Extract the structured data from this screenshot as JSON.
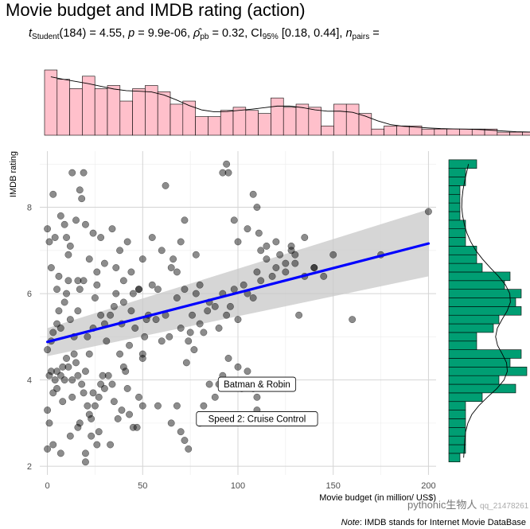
{
  "title": "Movie budget and IMDB rating (action)",
  "subtitle": {
    "t_symbol": "t",
    "t_sub": "Student",
    "t_value": "(184) = 4.55,",
    "p_symbol": "p",
    "p_value": "= 9.9e-06,",
    "rho_symbol": "ρ̂",
    "rho_sub": "pb",
    "rho_value": "= 0.32, CI",
    "ci_sub": "95%",
    "ci_value": "[0.18, 0.44],",
    "n_symbol": "n",
    "n_sub": "pairs",
    "n_value": "="
  },
  "note": {
    "label": "Note",
    "text": ": IMDB stands for Internet Movie DataBase"
  },
  "watermark": {
    "text": "pythonic生物人",
    "small": "qq_21478261"
  },
  "chart_data": {
    "type": "scatter",
    "title": "Movie budget and IMDB rating (action)",
    "xlabel": "Movie budget (in million/ US$)",
    "ylabel": "IMDB rating",
    "xlim": [
      -4,
      204
    ],
    "ylim": [
      1.8,
      9.3
    ],
    "xticks": [
      0,
      50,
      100,
      150,
      200
    ],
    "yticks": [
      2,
      4,
      6,
      8
    ],
    "grid": true,
    "point_color": "#000000",
    "line_color": "#0000ff",
    "band_color": "#c8c8c8",
    "regression": {
      "intercept": 4.88,
      "slope": 0.0114,
      "ci_left": [
        4.55,
        5.2
      ],
      "ci_right": [
        6.4,
        7.95
      ]
    },
    "points": [
      [
        0,
        2.4
      ],
      [
        1,
        3.0
      ],
      [
        0,
        3.3
      ],
      [
        3,
        2.5
      ],
      [
        7,
        2.3
      ],
      [
        3,
        3.7
      ],
      [
        5,
        3.8
      ],
      [
        8,
        3.5
      ],
      [
        1,
        4.1
      ],
      [
        2,
        4.2
      ],
      [
        4,
        4.0
      ],
      [
        5,
        4.2
      ],
      [
        7,
        4.1
      ],
      [
        8,
        4.3
      ],
      [
        9,
        4.0
      ],
      [
        10,
        4.5
      ],
      [
        11,
        4.3
      ],
      [
        13,
        4.0
      ],
      [
        14,
        4.6
      ],
      [
        15,
        4.4
      ],
      [
        16,
        4.1
      ],
      [
        18,
        3.9
      ],
      [
        19,
        3.7
      ],
      [
        20,
        4.2
      ],
      [
        22,
        3.2
      ],
      [
        23,
        3.1
      ],
      [
        24,
        3.7
      ],
      [
        25,
        3.4
      ],
      [
        27,
        3.6
      ],
      [
        28,
        3.9
      ],
      [
        12,
        2.7
      ],
      [
        13,
        3.6
      ],
      [
        16,
        2.9
      ],
      [
        17,
        3.0
      ],
      [
        20,
        2.3
      ],
      [
        21,
        3.4
      ],
      [
        23,
        2.7
      ],
      [
        26,
        2.5
      ],
      [
        27,
        2.8
      ],
      [
        20,
        2.1
      ],
      [
        29,
        4.1
      ],
      [
        30,
        3.8
      ],
      [
        32,
        4.1
      ],
      [
        34,
        3.9
      ],
      [
        35,
        3.5
      ],
      [
        33,
        2.5
      ],
      [
        37,
        3.1
      ],
      [
        39,
        3.3
      ],
      [
        40,
        4.3
      ],
      [
        42,
        3.8
      ],
      [
        43,
        3.2
      ],
      [
        45,
        2.9
      ],
      [
        47,
        2.9
      ],
      [
        48,
        3.6
      ],
      [
        50,
        4.5
      ],
      [
        0,
        4.7
      ],
      [
        2,
        4.9
      ],
      [
        3,
        5.1
      ],
      [
        5,
        5.3
      ],
      [
        6,
        5.6
      ],
      [
        7,
        5.2
      ],
      [
        9,
        5.8
      ],
      [
        10,
        6.0
      ],
      [
        11,
        6.3
      ],
      [
        12,
        5.4
      ],
      [
        14,
        5.0
      ],
      [
        16,
        5.6
      ],
      [
        17,
        6.1
      ],
      [
        19,
        6.3
      ],
      [
        21,
        5.0
      ],
      [
        22,
        4.6
      ],
      [
        24,
        5.2
      ],
      [
        25,
        5.9
      ],
      [
        26,
        6.2
      ],
      [
        28,
        5.5
      ],
      [
        30,
        5.3
      ],
      [
        31,
        4.9
      ],
      [
        33,
        5.5
      ],
      [
        35,
        5.7
      ],
      [
        36,
        6.0
      ],
      [
        38,
        4.6
      ],
      [
        39,
        5.3
      ],
      [
        40,
        5.8
      ],
      [
        41,
        4.2
      ],
      [
        43,
        4.8
      ],
      [
        44,
        5.6
      ],
      [
        45,
        6.0
      ],
      [
        46,
        5.2
      ],
      [
        48,
        6.1
      ],
      [
        50,
        4.6
      ],
      [
        51,
        5.0
      ],
      [
        52,
        5.4
      ],
      [
        53,
        5.5
      ],
      [
        55,
        6.2
      ],
      [
        57,
        5.4
      ],
      [
        58,
        6.1
      ],
      [
        60,
        4.9
      ],
      [
        62,
        5.5
      ],
      [
        64,
        5.0
      ],
      [
        65,
        6.6
      ],
      [
        66,
        6.8
      ],
      [
        68,
        5.9
      ],
      [
        70,
        5.2
      ],
      [
        72,
        6.1
      ],
      [
        73,
        4.4
      ],
      [
        74,
        4.9
      ],
      [
        75,
        5.1
      ],
      [
        76,
        5.5
      ],
      [
        77,
        4.7
      ],
      [
        78,
        6.0
      ],
      [
        80,
        5.3
      ],
      [
        82,
        5.1
      ],
      [
        84,
        5.6
      ],
      [
        85,
        5.8
      ],
      [
        88,
        5.7
      ],
      [
        90,
        5.2
      ],
      [
        92,
        6.0
      ],
      [
        94,
        5.5
      ],
      [
        96,
        5.7
      ],
      [
        98,
        6.1
      ],
      [
        100,
        5.4
      ],
      [
        103,
        6.2
      ],
      [
        105,
        6.0
      ],
      [
        108,
        5.9
      ],
      [
        110,
        6.5
      ],
      [
        112,
        6.3
      ],
      [
        115,
        6.8
      ],
      [
        118,
        6.4
      ],
      [
        120,
        6.6
      ],
      [
        122,
        6.9
      ],
      [
        125,
        6.5
      ],
      [
        128,
        7.1
      ],
      [
        130,
        6.9
      ],
      [
        132,
        5.5
      ],
      [
        135,
        6.4
      ],
      [
        140,
        6.6
      ],
      [
        145,
        6.4
      ],
      [
        150,
        6.9
      ],
      [
        160,
        5.4
      ],
      [
        175,
        6.9
      ],
      [
        200,
        7.9
      ],
      [
        0,
        7.5
      ],
      [
        1,
        7.2
      ],
      [
        2,
        6.6
      ],
      [
        3,
        8.3
      ],
      [
        4,
        7.3
      ],
      [
        5,
        6.1
      ],
      [
        6,
        6.4
      ],
      [
        7,
        7.8
      ],
      [
        9,
        7.6
      ],
      [
        10,
        7.3
      ],
      [
        11,
        6.9
      ],
      [
        12,
        7.1
      ],
      [
        13,
        8.8
      ],
      [
        15,
        7.7
      ],
      [
        16,
        6.3
      ],
      [
        17,
        8.4
      ],
      [
        18,
        8.2
      ],
      [
        19,
        8.8
      ],
      [
        20,
        7.6
      ],
      [
        22,
        6.8
      ],
      [
        24,
        7.4
      ],
      [
        26,
        6.5
      ],
      [
        28,
        7.3
      ],
      [
        30,
        6.7
      ],
      [
        34,
        7.5
      ],
      [
        36,
        6.6
      ],
      [
        38,
        7.0
      ],
      [
        40,
        6.3
      ],
      [
        42,
        7.2
      ],
      [
        44,
        6.5
      ],
      [
        48,
        6.1
      ],
      [
        50,
        6.8
      ],
      [
        55,
        7.3
      ],
      [
        60,
        7.0
      ],
      [
        62,
        8.5
      ],
      [
        68,
        6.5
      ],
      [
        70,
        7.2
      ],
      [
        72,
        7.7
      ],
      [
        78,
        6.9
      ],
      [
        80,
        6.2
      ],
      [
        92,
        8.8
      ],
      [
        94,
        9.0
      ],
      [
        95,
        8.8
      ],
      [
        98,
        7.7
      ],
      [
        100,
        7.2
      ],
      [
        105,
        7.5
      ],
      [
        108,
        8.3
      ],
      [
        110,
        8.0
      ],
      [
        111,
        7.4
      ],
      [
        112,
        7.0
      ],
      [
        115,
        7.1
      ],
      [
        120,
        7.2
      ],
      [
        125,
        6.7
      ],
      [
        128,
        7.0
      ],
      [
        130,
        6.7
      ],
      [
        135,
        7.3
      ],
      [
        140,
        6.6
      ],
      [
        50,
        3.4
      ],
      [
        58,
        3.4
      ],
      [
        65,
        3.0
      ],
      [
        68,
        3.4
      ],
      [
        70,
        2.8
      ],
      [
        72,
        2.6
      ],
      [
        74,
        2.4
      ],
      [
        80,
        3.0
      ],
      [
        82,
        3.4
      ],
      [
        85,
        3.9
      ],
      [
        88,
        3.6
      ],
      [
        90,
        3.9
      ],
      [
        92,
        4.1
      ],
      [
        95,
        4.5
      ],
      [
        100,
        4.3
      ],
      [
        102,
        3.8
      ],
      [
        105,
        4.2
      ],
      [
        108,
        3.8
      ],
      [
        110,
        3.6
      ],
      [
        110,
        3.3
      ]
    ],
    "labels": [
      {
        "text": "Batman & Robin",
        "x": 110,
        "y": 3.9
      },
      {
        "text": "Speed 2: Cruise Control",
        "x": 110,
        "y": 3.1
      }
    ],
    "x_hist": {
      "bin_start": -1.5,
      "bin_width": 6.6,
      "counts": [
        21,
        18,
        15,
        19,
        15,
        16,
        11,
        15,
        16,
        14,
        10,
        11,
        6,
        6,
        8,
        9,
        8,
        7,
        12,
        9,
        10,
        9,
        3,
        10,
        10,
        7,
        2,
        3,
        3,
        3,
        2,
        2,
        2,
        2,
        2,
        2,
        1,
        1,
        1,
        1,
        1,
        1
      ],
      "color": "#ffc0cb"
    },
    "y_hist": {
      "bin_start": 2.1,
      "bin_width": 0.2,
      "counts": [
        2,
        3,
        3,
        3,
        3,
        3,
        3,
        6,
        12,
        9,
        14,
        11,
        13,
        5,
        5,
        8,
        9,
        13,
        12,
        13,
        10,
        11,
        6,
        5,
        5,
        3,
        3,
        3,
        2,
        2,
        2,
        2,
        3,
        3,
        5
      ],
      "color": "#009e73"
    }
  }
}
